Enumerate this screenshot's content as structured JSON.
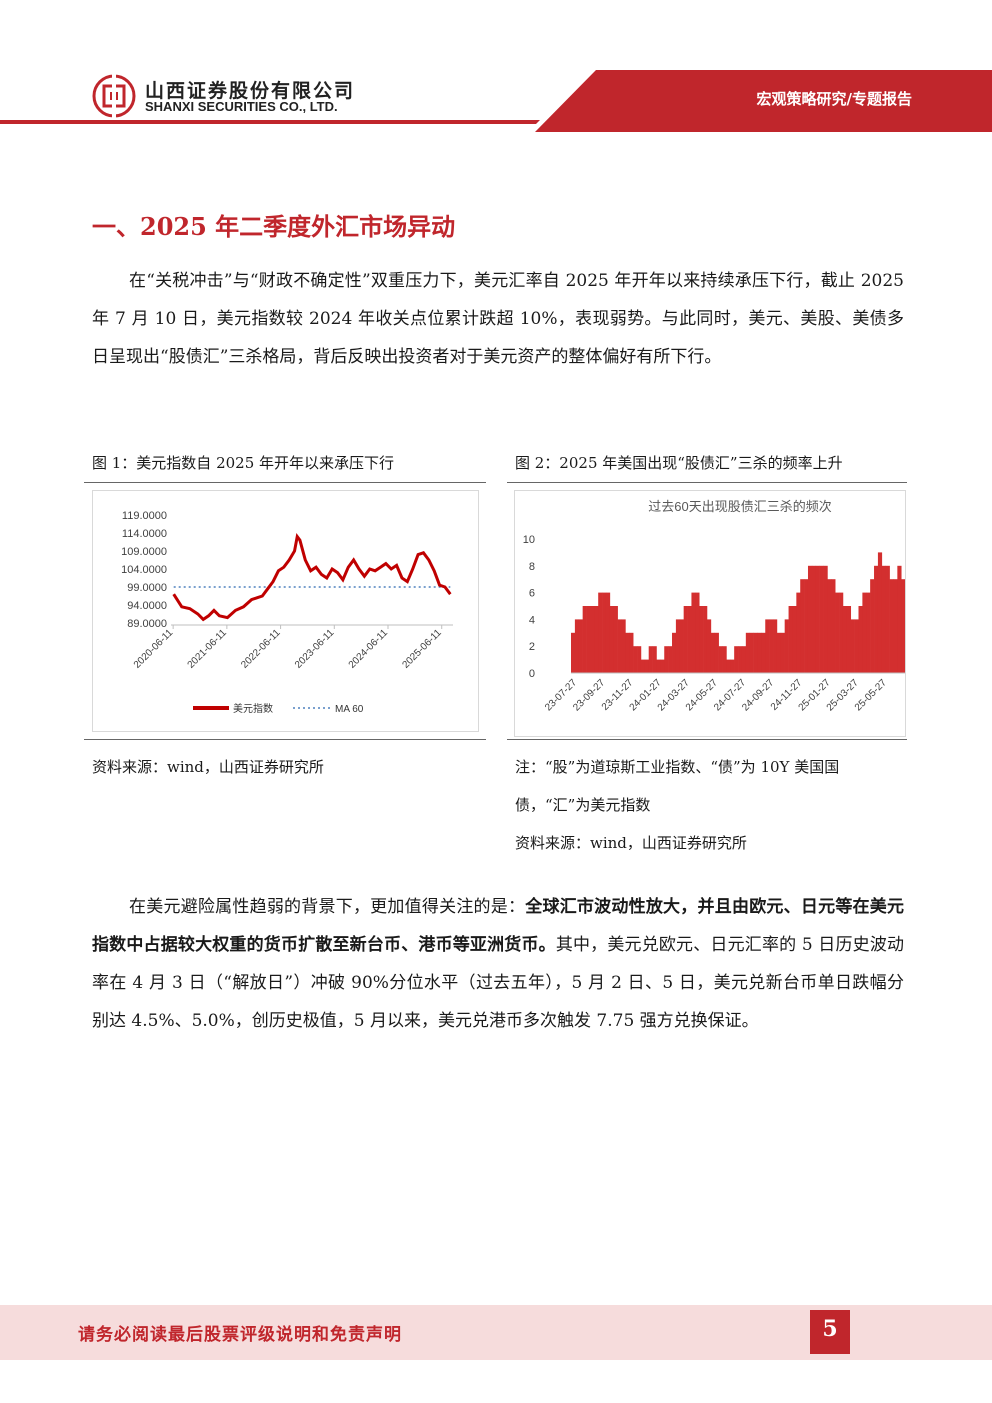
{
  "header": {
    "company_cn": "山西证券股份有限公司",
    "company_en": "SHANXI SECURITIES CO., LTD.",
    "report_type": "宏观策略研究/专题报告"
  },
  "section": {
    "title": "一、2025 年二季度外汇市场异动",
    "para1": "在“关税冲击”与“财政不确定性”双重压力下，美元汇率自 2025 年开年以来持续承压下行，截止 2025 年 7 月 10 日，美元指数较 2024 年收关点位累计跌超 10%，表现弱势。与此同时，美元、美股、美债多日呈现出“股债汇”三杀格局，背后反映出投资者对于美元资产的整体偏好有所下行。",
    "para2_a": "在美元避险属性趋弱的背景下，更加值得关注的是：",
    "para2_bold": "全球汇市波动性放大，并且由欧元、日元等在美元指数中占据较大权重的货币扩散至新台币、港币等亚洲货币。",
    "para2_b": "其中，美元兑欧元、日元汇率的 5 日历史波动率在 4 月 3 日（“解放日”）冲破 90%分位水平（过去五年），5 月 2 日、5 日，美元兑新台币单日跌幅分别达 4.5%、5.0%，创历史极值，5 月以来，美元兑港币多次触发 7.75 强方兑换保证。"
  },
  "figures": {
    "fig1_caption": "图 1：美元指数自 2025 年开年以来承压下行",
    "fig1_source": "资料来源：wind，山西证券研究所",
    "fig2_caption": "图 2：2025 年美国出现“股债汇”三杀的频率上升",
    "fig2_note1": "注：“股”为道琼斯工业指数、“债”为 10Y 美国国",
    "fig2_note2": "债，“汇”为美元指数",
    "fig2_source": "资料来源：wind，山西证券研究所"
  },
  "chart_data": [
    {
      "type": "line",
      "title": "",
      "y_ticks": [
        "119.0000",
        "114.0000",
        "109.0000",
        "104.0000",
        "99.0000",
        "94.0000",
        "89.0000"
      ],
      "ylim": [
        89,
        119
      ],
      "x_ticks": [
        "2020-06-11",
        "2021-06-11",
        "2022-06-11",
        "2023-06-11",
        "2024-06-11",
        "2025-06-11"
      ],
      "xlim": [
        2020.4,
        2025.65
      ],
      "legend": [
        "美元指数",
        "MA 60"
      ],
      "legend_position": "bottom",
      "series": [
        {
          "name": "美元指数",
          "color": "#c00000",
          "x": [
            2020.45,
            2020.6,
            2020.75,
            2020.9,
            2021.0,
            2021.1,
            2021.2,
            2021.3,
            2021.45,
            2021.6,
            2021.75,
            2021.9,
            2022.0,
            2022.1,
            2022.2,
            2022.3,
            2022.4,
            2022.5,
            2022.6,
            2022.7,
            2022.75,
            2022.8,
            2022.9,
            2023.0,
            2023.1,
            2023.2,
            2023.3,
            2023.4,
            2023.5,
            2023.6,
            2023.7,
            2023.8,
            2023.9,
            2024.0,
            2024.1,
            2024.2,
            2024.3,
            2024.4,
            2024.5,
            2024.6,
            2024.7,
            2024.8,
            2024.9,
            2025.0,
            2025.1,
            2025.2,
            2025.3,
            2025.4,
            2025.5,
            2025.6
          ],
          "y": [
            97.0,
            93.5,
            93.0,
            91.5,
            90.0,
            91.0,
            92.5,
            91.0,
            90.5,
            92.5,
            93.5,
            95.5,
            96.0,
            96.5,
            98.5,
            100.5,
            103.5,
            104.5,
            106.5,
            109.0,
            113.0,
            112.0,
            106.5,
            103.5,
            104.5,
            102.5,
            101.5,
            104.0,
            103.0,
            101.0,
            104.5,
            106.5,
            104.0,
            102.0,
            104.0,
            103.5,
            104.5,
            105.5,
            104.0,
            105.0,
            101.5,
            100.5,
            104.0,
            108.0,
            108.5,
            106.5,
            103.5,
            99.5,
            99.0,
            97.0
          ]
        },
        {
          "name": "MA 60",
          "color": "#4f81bd",
          "x": [
            2020.45,
            2025.6
          ],
          "y": [
            99.0,
            99.0
          ]
        }
      ]
    },
    {
      "type": "area",
      "title": "过去60天出现股债汇三杀的频次",
      "y_ticks": [
        "10",
        "8",
        "6",
        "4",
        "2",
        "0"
      ],
      "ylim": [
        0,
        10
      ],
      "x_ticks": [
        "23-07-27",
        "23-09-27",
        "23-11-27",
        "24-01-27",
        "24-03-27",
        "24-05-27",
        "24-07-27",
        "24-09-27",
        "24-11-27",
        "25-01-27",
        "25-03-27",
        "25-05-27"
      ],
      "color": "#d32f2f",
      "values": [
        3,
        4,
        4,
        5,
        5,
        5,
        5,
        6,
        6,
        6,
        5,
        5,
        4,
        4,
        3,
        3,
        2,
        2,
        1,
        1,
        2,
        2,
        1,
        1,
        2,
        2,
        3,
        4,
        4,
        5,
        5,
        6,
        6,
        5,
        5,
        4,
        3,
        3,
        2,
        2,
        1,
        1,
        2,
        2,
        2,
        3,
        3,
        3,
        3,
        3,
        4,
        4,
        4,
        3,
        3,
        4,
        5,
        5,
        6,
        7,
        7,
        8,
        8,
        8,
        8,
        8,
        7,
        7,
        6,
        6,
        5,
        5,
        4,
        4,
        5,
        6,
        6,
        7,
        8,
        9,
        8,
        8,
        7,
        7,
        8,
        7,
        6
      ]
    }
  ],
  "footer": {
    "disclaimer": "请务必阅读最后股票评级说明和免责声明",
    "page": "5"
  }
}
